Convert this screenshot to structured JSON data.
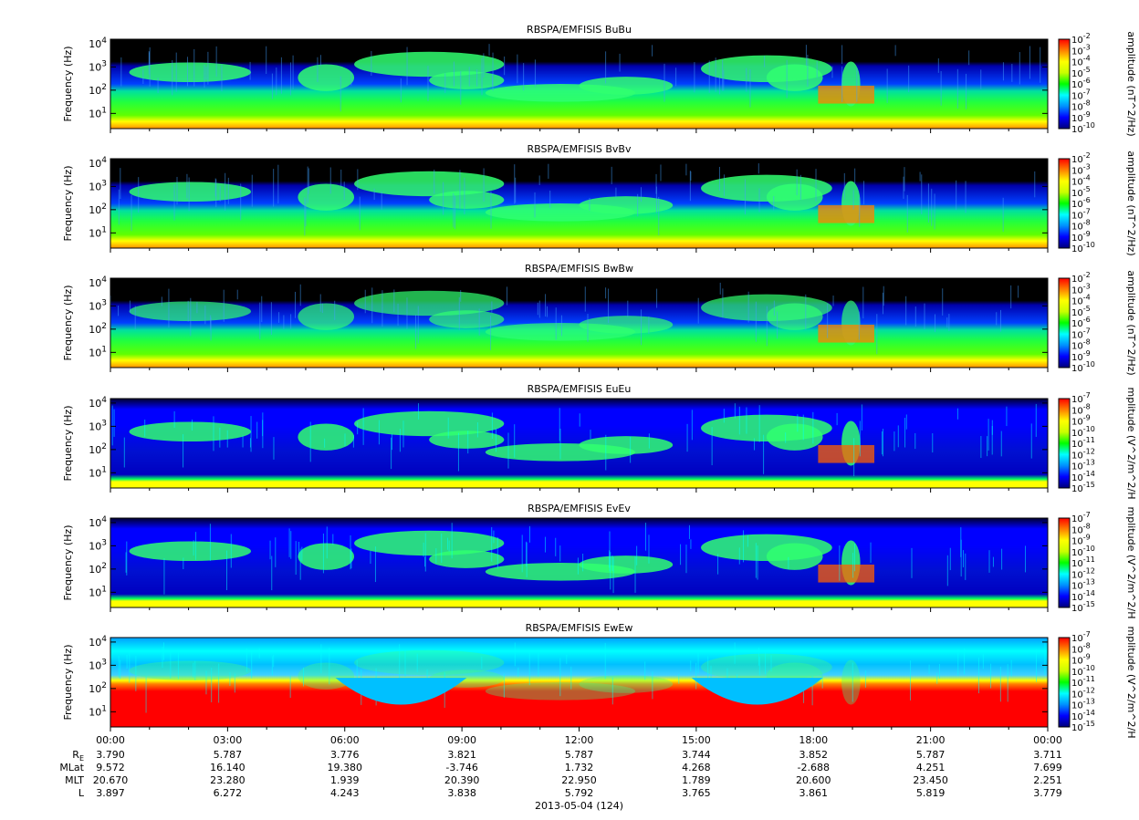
{
  "chart_data": [
    {
      "type": "heatmap",
      "title": "RBSPA/EMFISIS  BuBu",
      "ylabel": "Frequency (Hz)",
      "yscale": "log",
      "y_ticks": [
        "10^1",
        "10^2",
        "10^3",
        "10^4"
      ],
      "colorbar": {
        "label": "amplitude (nT^2/Hz)",
        "scale": "log",
        "ticks": [
          "10^-2",
          "10^-3",
          "10^-4",
          "10^-5",
          "10^-6",
          "10^-7",
          "10^-8",
          "10^-9",
          "10^-10"
        ],
        "range": [
          -10,
          -2
        ]
      },
      "features": {
        "background": "green",
        "chorus": "strong",
        "lowband": "yellow"
      }
    },
    {
      "type": "heatmap",
      "title": "RBSPA/EMFISIS  BvBv",
      "ylabel": "Frequency (Hz)",
      "yscale": "log",
      "y_ticks": [
        "10^1",
        "10^2",
        "10^3",
        "10^4"
      ],
      "colorbar": {
        "label": "amplitude (nT^2/Hz)",
        "scale": "log",
        "ticks": [
          "10^-2",
          "10^-3",
          "10^-4",
          "10^-5",
          "10^-6",
          "10^-7",
          "10^-8",
          "10^-9",
          "10^-10"
        ],
        "range": [
          -10,
          -2
        ]
      },
      "features": {
        "background": "green",
        "chorus": "strong",
        "lowband": "yellow"
      }
    },
    {
      "type": "heatmap",
      "title": "RBSPA/EMFISIS  BwBw",
      "ylabel": "Frequency (Hz)",
      "yscale": "log",
      "y_ticks": [
        "10^1",
        "10^2",
        "10^3",
        "10^4"
      ],
      "colorbar": {
        "label": "amplitude (nT^2/Hz)",
        "scale": "log",
        "ticks": [
          "10^-2",
          "10^-3",
          "10^-4",
          "10^-5",
          "10^-6",
          "10^-7",
          "10^-8",
          "10^-9",
          "10^-10"
        ],
        "range": [
          -10,
          -2
        ]
      },
      "features": {
        "background": "green",
        "chorus": "medium",
        "lowband": "yellow"
      }
    },
    {
      "type": "heatmap",
      "title": "RBSPA/EMFISIS  EuEu",
      "ylabel": "Frequency (Hz)",
      "yscale": "log",
      "y_ticks": [
        "10^1",
        "10^2",
        "10^3",
        "10^4"
      ],
      "colorbar": {
        "label": "mplitude (V^2/m^2/H",
        "scale": "log",
        "ticks": [
          "10^-7",
          "10^-8",
          "10^-9",
          "10^-10",
          "10^-11",
          "10^-12",
          "10^-13",
          "10^-14",
          "10^-15"
        ],
        "range": [
          -15,
          -7
        ]
      },
      "features": {
        "background": "blue",
        "chorus": "strong",
        "lowband": "spiky"
      }
    },
    {
      "type": "heatmap",
      "title": "RBSPA/EMFISIS  EvEv",
      "ylabel": "Frequency (Hz)",
      "yscale": "log",
      "y_ticks": [
        "10^1",
        "10^2",
        "10^3",
        "10^4"
      ],
      "colorbar": {
        "label": "mplitude (V^2/m^2/H",
        "scale": "log",
        "ticks": [
          "10^-7",
          "10^-8",
          "10^-9",
          "10^-10",
          "10^-11",
          "10^-12",
          "10^-13",
          "10^-14",
          "10^-15"
        ],
        "range": [
          -15,
          -7
        ]
      },
      "features": {
        "background": "blue",
        "chorus": "strong",
        "lowband": "spiky"
      }
    },
    {
      "type": "heatmap",
      "title": "RBSPA/EMFISIS  EwEw",
      "ylabel": "Frequency (Hz)",
      "yscale": "log",
      "y_ticks": [
        "10^1",
        "10^2",
        "10^3",
        "10^4"
      ],
      "colorbar": {
        "label": "mplitude (V^2/m^2/H",
        "scale": "log",
        "ticks": [
          "10^-7",
          "10^-8",
          "10^-9",
          "10^-10",
          "10^-11",
          "10^-12",
          "10^-13",
          "10^-14",
          "10^-15"
        ],
        "range": [
          -15,
          -7
        ]
      },
      "features": {
        "background": "cyan",
        "chorus": "weak",
        "lowband": "red"
      }
    }
  ],
  "x_axis": {
    "tick_labels": [
      "00:00",
      "03:00",
      "06:00",
      "09:00",
      "12:00",
      "15:00",
      "18:00",
      "21:00",
      "00:00"
    ],
    "date_label": "2013-05-04 (124)"
  },
  "ephemeris": {
    "rows": [
      {
        "label": "R_E",
        "label_main": "R",
        "label_sub": "E",
        "values": [
          "3.790",
          "5.787",
          "3.776",
          "3.821",
          "5.787",
          "3.744",
          "3.852",
          "5.787",
          "3.711"
        ]
      },
      {
        "label": "MLat",
        "label_main": "MLat",
        "label_sub": "",
        "values": [
          "9.572",
          "16.140",
          "19.380",
          "-3.746",
          "1.732",
          "4.268",
          "-2.688",
          "4.251",
          "7.699"
        ]
      },
      {
        "label": "MLT",
        "label_main": "MLT",
        "label_sub": "",
        "values": [
          "20.670",
          "23.280",
          "1.939",
          "20.390",
          "22.950",
          "1.789",
          "20.600",
          "23.450",
          "2.251"
        ]
      },
      {
        "label": "L",
        "label_main": "L",
        "label_sub": "",
        "values": [
          "3.897",
          "6.272",
          "4.243",
          "3.838",
          "5.792",
          "3.765",
          "3.861",
          "5.819",
          "3.779"
        ]
      }
    ]
  },
  "colors": {
    "spectrogram_scale": [
      "#00007a",
      "#0000ff",
      "#0090ff",
      "#00ffff",
      "#00ff00",
      "#c8ff00",
      "#ffff00",
      "#ff8000",
      "#ff0000"
    ],
    "no_data": "#000000"
  }
}
